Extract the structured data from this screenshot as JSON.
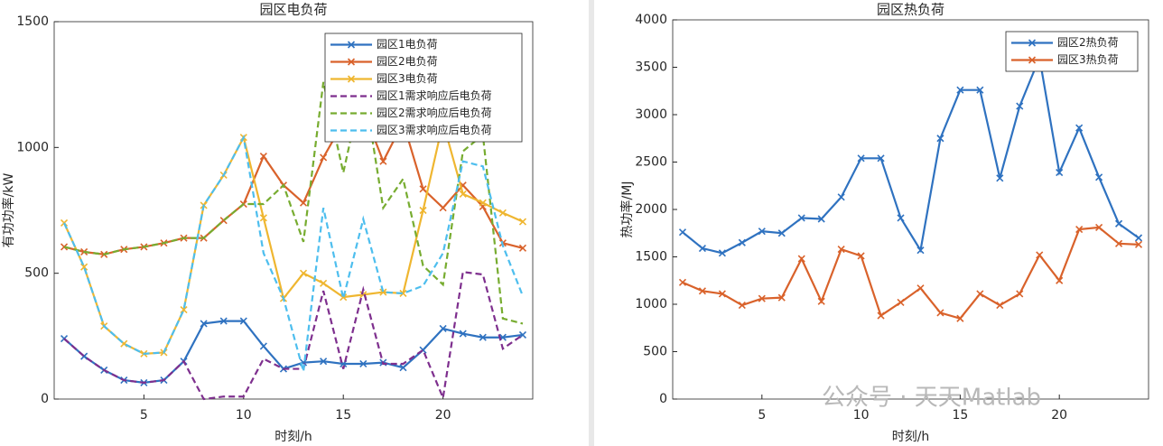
{
  "chart_data": [
    {
      "type": "line",
      "title": "园区电负荷",
      "x_label": "时刻/h",
      "y_label": "有功功率/kW",
      "x": [
        1,
        2,
        3,
        4,
        5,
        6,
        7,
        8,
        9,
        10,
        11,
        12,
        13,
        14,
        15,
        16,
        17,
        18,
        19,
        20,
        21,
        22,
        23,
        24
      ],
      "xlim": [
        0.5,
        24.5
      ],
      "xticks": [
        5,
        10,
        15,
        20
      ],
      "ylim": [
        0,
        1500
      ],
      "yticks": [
        0,
        500,
        1000,
        1500
      ],
      "grid": false,
      "legend": "upper right",
      "series": [
        {
          "name": "园区1电负荷",
          "color": "#2f72c0",
          "linestyle": "solid",
          "marker": "x",
          "values": [
            240,
            170,
            115,
            75,
            65,
            75,
            150,
            300,
            310,
            310,
            210,
            120,
            145,
            150,
            140,
            140,
            145,
            125,
            195,
            280,
            260,
            245,
            245,
            255
          ]
        },
        {
          "name": "园区2电负荷",
          "color": "#d9622b",
          "linestyle": "solid",
          "marker": "x",
          "values": [
            605,
            585,
            575,
            595,
            605,
            620,
            640,
            640,
            710,
            775,
            965,
            850,
            780,
            960,
            1100,
            1150,
            945,
            1100,
            835,
            760,
            850,
            765,
            620,
            600
          ]
        },
        {
          "name": "园区3电负荷",
          "color": "#efb630",
          "linestyle": "solid",
          "marker": "x",
          "values": [
            700,
            525,
            290,
            220,
            180,
            185,
            355,
            770,
            890,
            1040,
            720,
            400,
            500,
            460,
            405,
            415,
            425,
            420,
            750,
            1100,
            815,
            780,
            740,
            705
          ]
        },
        {
          "name": "园区1需求响应后电负荷",
          "color": "#7e2f8e",
          "linestyle": "dashed",
          "marker": "none",
          "values": [
            240,
            170,
            115,
            75,
            65,
            75,
            150,
            0,
            10,
            10,
            160,
            120,
            120,
            430,
            120,
            435,
            140,
            140,
            195,
            5,
            505,
            495,
            200,
            255
          ]
        },
        {
          "name": "园区2需求响应后电负荷",
          "color": "#77ac30",
          "linestyle": "dashed",
          "marker": "none",
          "values": [
            605,
            585,
            575,
            595,
            605,
            620,
            640,
            640,
            710,
            775,
            775,
            850,
            625,
            1260,
            900,
            1260,
            760,
            875,
            530,
            455,
            985,
            1050,
            320,
            300
          ]
        },
        {
          "name": "园区3需求响应后电负荷",
          "color": "#4dbeee",
          "linestyle": "dashed",
          "marker": "none",
          "values": [
            700,
            525,
            290,
            220,
            180,
            185,
            355,
            770,
            890,
            1040,
            580,
            400,
            110,
            760,
            400,
            715,
            425,
            420,
            450,
            580,
            945,
            925,
            610,
            410
          ]
        }
      ]
    },
    {
      "type": "line",
      "title": "园区热负荷",
      "x_label": "时刻/h",
      "y_label": "热功率/MJ",
      "x": [
        1,
        2,
        3,
        4,
        5,
        6,
        7,
        8,
        9,
        10,
        11,
        12,
        13,
        14,
        15,
        16,
        17,
        18,
        19,
        20,
        21,
        22,
        23,
        24
      ],
      "xlim": [
        0.5,
        24.5
      ],
      "xticks": [
        5,
        10,
        15,
        20
      ],
      "ylim": [
        0,
        4000
      ],
      "yticks": [
        0,
        500,
        1000,
        1500,
        2000,
        2500,
        3000,
        3500,
        4000
      ],
      "grid": false,
      "legend": "upper right",
      "series": [
        {
          "name": "园区2热负荷",
          "color": "#2f72c0",
          "linestyle": "solid",
          "marker": "x",
          "values": [
            1760,
            1590,
            1540,
            1650,
            1770,
            1750,
            1910,
            1900,
            2130,
            2540,
            2540,
            1910,
            1570,
            2750,
            3260,
            3260,
            2330,
            3090,
            3600,
            2390,
            2860,
            2340,
            1850,
            1700
          ]
        },
        {
          "name": "园区3热负荷",
          "color": "#d9622b",
          "linestyle": "solid",
          "marker": "x",
          "values": [
            1230,
            1140,
            1110,
            990,
            1060,
            1070,
            1480,
            1030,
            1580,
            1510,
            880,
            1020,
            1170,
            910,
            850,
            1110,
            990,
            1110,
            1520,
            1250,
            1790,
            1810,
            1640,
            1630
          ]
        }
      ]
    }
  ],
  "watermark": "公众号 · 天天Matlab"
}
